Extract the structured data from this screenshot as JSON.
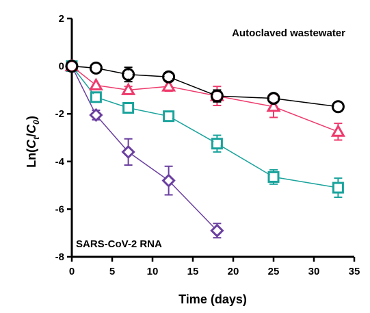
{
  "chart_data": {
    "type": "line",
    "xlabel": "Time (days)",
    "ylabel_parts": [
      "Ln(",
      "C",
      "t",
      "/",
      "C",
      "0",
      ")"
    ],
    "xlim": [
      0,
      35
    ],
    "ylim": [
      -8,
      2
    ],
    "x_ticks": [
      0,
      5,
      10,
      15,
      20,
      25,
      30,
      35
    ],
    "y_ticks": [
      2,
      0,
      -2,
      -4,
      -6,
      -8
    ],
    "x_tick_labels": [
      "0",
      "5",
      "10",
      "15",
      "20",
      "25",
      "30",
      "35"
    ],
    "y_tick_labels": [
      "2",
      "0",
      "-2",
      "-4",
      "-6",
      "-8"
    ],
    "grid": false,
    "annotations": {
      "top_right": "Autoclaved wastewater",
      "bottom_left": "SARS-CoV-2 RNA"
    },
    "series": [
      {
        "marker": "circle",
        "color": "#000000",
        "points": [
          {
            "x": 0,
            "y": 0,
            "err": 0.05
          },
          {
            "x": 3,
            "y": -0.08,
            "err": 0.1
          },
          {
            "x": 7,
            "y": -0.35,
            "err": 0.3
          },
          {
            "x": 12,
            "y": -0.45,
            "err": 0.15
          },
          {
            "x": 18,
            "y": -1.25,
            "err": 0.25
          },
          {
            "x": 25,
            "y": -1.35,
            "err": 0.15
          },
          {
            "x": 33,
            "y": -1.7,
            "err": 0.1
          }
        ]
      },
      {
        "marker": "triangle",
        "color": "#ee3a6c",
        "points": [
          {
            "x": 0,
            "y": 0,
            "err": 0.05
          },
          {
            "x": 3,
            "y": -0.8,
            "err": 0.1
          },
          {
            "x": 7,
            "y": -1.0,
            "err": 0.15
          },
          {
            "x": 12,
            "y": -0.85,
            "err": 0.2
          },
          {
            "x": 18,
            "y": -1.25,
            "err": 0.4
          },
          {
            "x": 25,
            "y": -1.7,
            "err": 0.45
          },
          {
            "x": 33,
            "y": -2.75,
            "err": 0.35
          }
        ]
      },
      {
        "marker": "square",
        "color": "#1aa39c",
        "points": [
          {
            "x": 0,
            "y": 0,
            "err": 0.05
          },
          {
            "x": 3,
            "y": -1.3,
            "err": 0.1
          },
          {
            "x": 7,
            "y": -1.75,
            "err": 0.1
          },
          {
            "x": 12,
            "y": -2.1,
            "err": 0.1
          },
          {
            "x": 18,
            "y": -3.25,
            "err": 0.35
          },
          {
            "x": 25,
            "y": -4.65,
            "err": 0.3
          },
          {
            "x": 33,
            "y": -5.1,
            "err": 0.4
          }
        ]
      },
      {
        "marker": "diamond",
        "color": "#6a3fa0",
        "points": [
          {
            "x": 0,
            "y": 0,
            "err": 0.05
          },
          {
            "x": 3,
            "y": -2.05,
            "err": 0.2
          },
          {
            "x": 7,
            "y": -3.6,
            "err": 0.55
          },
          {
            "x": 12,
            "y": -4.8,
            "err": 0.6
          },
          {
            "x": 18,
            "y": -6.9,
            "err": 0.3
          }
        ]
      }
    ]
  }
}
